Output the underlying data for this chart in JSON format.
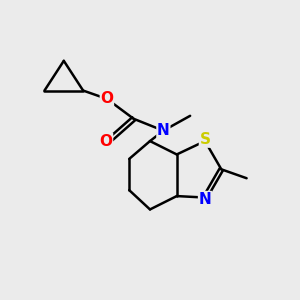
{
  "bg_color": "#ebebeb",
  "bond_color": "#000000",
  "bond_width": 1.8,
  "atom_colors": {
    "O": "#ff0000",
    "N": "#0000ff",
    "S": "#cccc00",
    "C": "#000000"
  },
  "font_size": 11,
  "atom_bg": "#ebebeb"
}
